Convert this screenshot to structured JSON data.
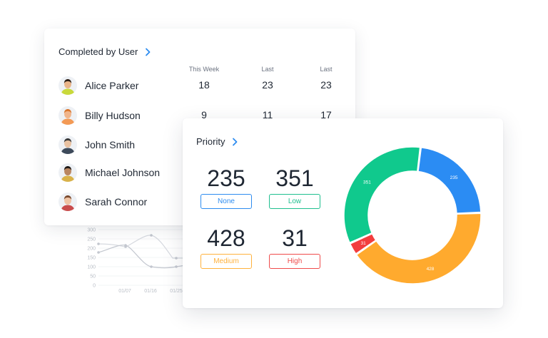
{
  "completed_by_user": {
    "title": "Completed by User",
    "columns": [
      "This Week",
      "Last",
      "Last"
    ],
    "users": [
      {
        "name": "Alice Parker",
        "this_week": "18",
        "last_1": "23",
        "last_2": "23",
        "skin": "#e9b48a",
        "hair": "#2e2018",
        "shirt": "#c9d93b"
      },
      {
        "name": "Billy Hudson",
        "this_week": "9",
        "last_1": "11",
        "last_2": "17",
        "skin": "#f0b58c",
        "hair": "#d9772f",
        "shirt": "#f39a55"
      },
      {
        "name": "John Smith",
        "this_week": "",
        "last_1": "",
        "last_2": "",
        "skin": "#e9c2a2",
        "hair": "#3a3a3a",
        "shirt": "#3d4a5a"
      },
      {
        "name": "Michael Johnson",
        "this_week": "",
        "last_1": "",
        "last_2": "",
        "skin": "#b98661",
        "hair": "#1f1a17",
        "shirt": "#d9b24a"
      },
      {
        "name": "Sarah Connor",
        "this_week": "",
        "last_1": "",
        "last_2": "",
        "skin": "#efc3a4",
        "hair": "#7a4a2e",
        "shirt": "#c94c4c"
      }
    ]
  },
  "background_chart": {
    "y_ticks": [
      "300",
      "250",
      "200",
      "150",
      "100",
      "50",
      "0"
    ],
    "x_ticks": [
      "01/07",
      "01/16",
      "01/25"
    ]
  },
  "priority": {
    "title": "Priority",
    "stats": [
      {
        "value": "235",
        "label": "None",
        "color": "#2d8cf0"
      },
      {
        "value": "351",
        "label": "Low",
        "color": "#1fbf8f"
      },
      {
        "value": "428",
        "label": "Medium",
        "color": "#ffb13c"
      },
      {
        "value": "31",
        "label": "High",
        "color": "#ef4b4b"
      }
    ],
    "slice_colors": {
      "None": "#2b8cf3",
      "Low": "#10c98d",
      "Medium": "#ffaa2e",
      "High": "#f23d3d"
    }
  },
  "chart_data": {
    "type": "pie",
    "categories": [
      "None",
      "Medium",
      "High",
      "Low"
    ],
    "values": [
      235,
      428,
      31,
      351
    ]
  },
  "icons": {
    "title_arrow": "chevron-right-icon"
  }
}
